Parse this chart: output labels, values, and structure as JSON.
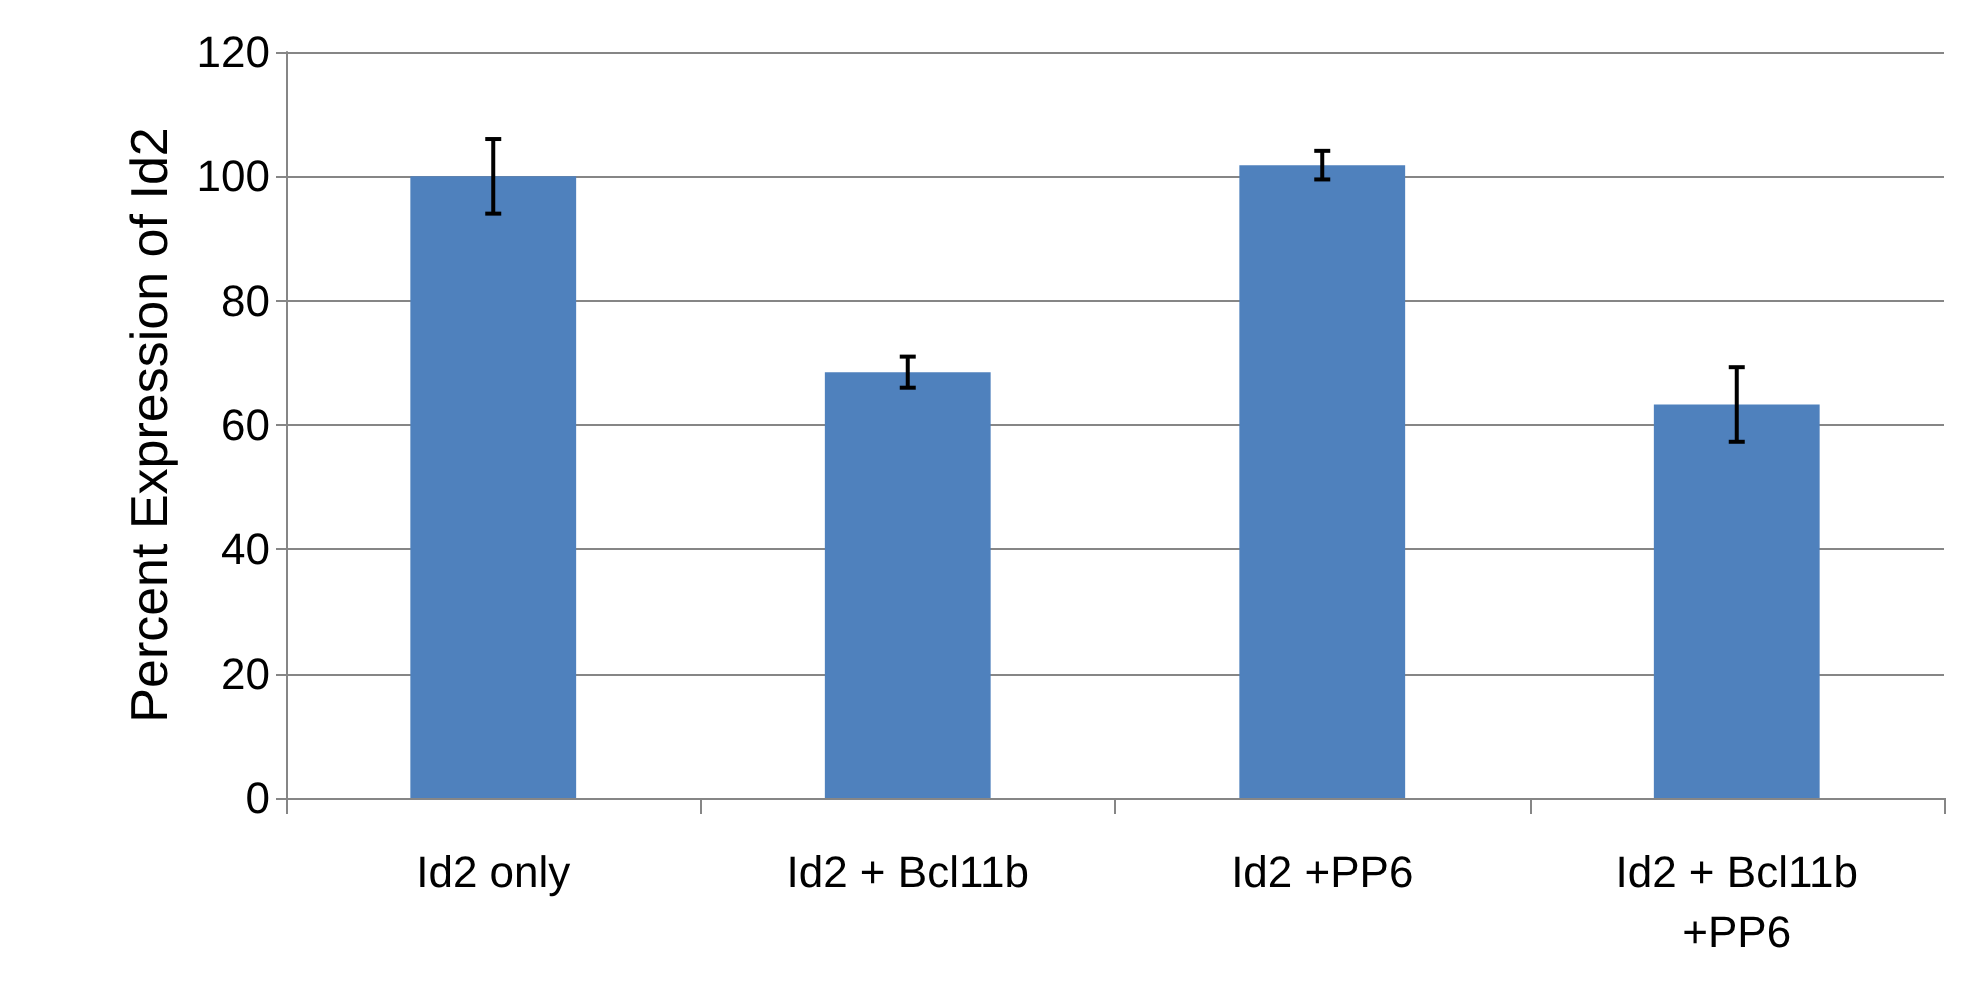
{
  "chart_data": {
    "type": "bar",
    "ylabel": "Percent Expression of Id2",
    "categories": [
      "Id2 only",
      "Id2 + Bcl11b",
      "Id2 +PP6",
      "Id2 + Bcl11b\n+PP6"
    ],
    "values": [
      100,
      68.5,
      101.8,
      63.3
    ],
    "errors": [
      6,
      2.5,
      2.3,
      6
    ],
    "color": "#4f81bd",
    "ylim": [
      0,
      120
    ],
    "yticks": [
      0,
      20,
      40,
      60,
      80,
      100,
      120
    ],
    "grid": "y"
  }
}
